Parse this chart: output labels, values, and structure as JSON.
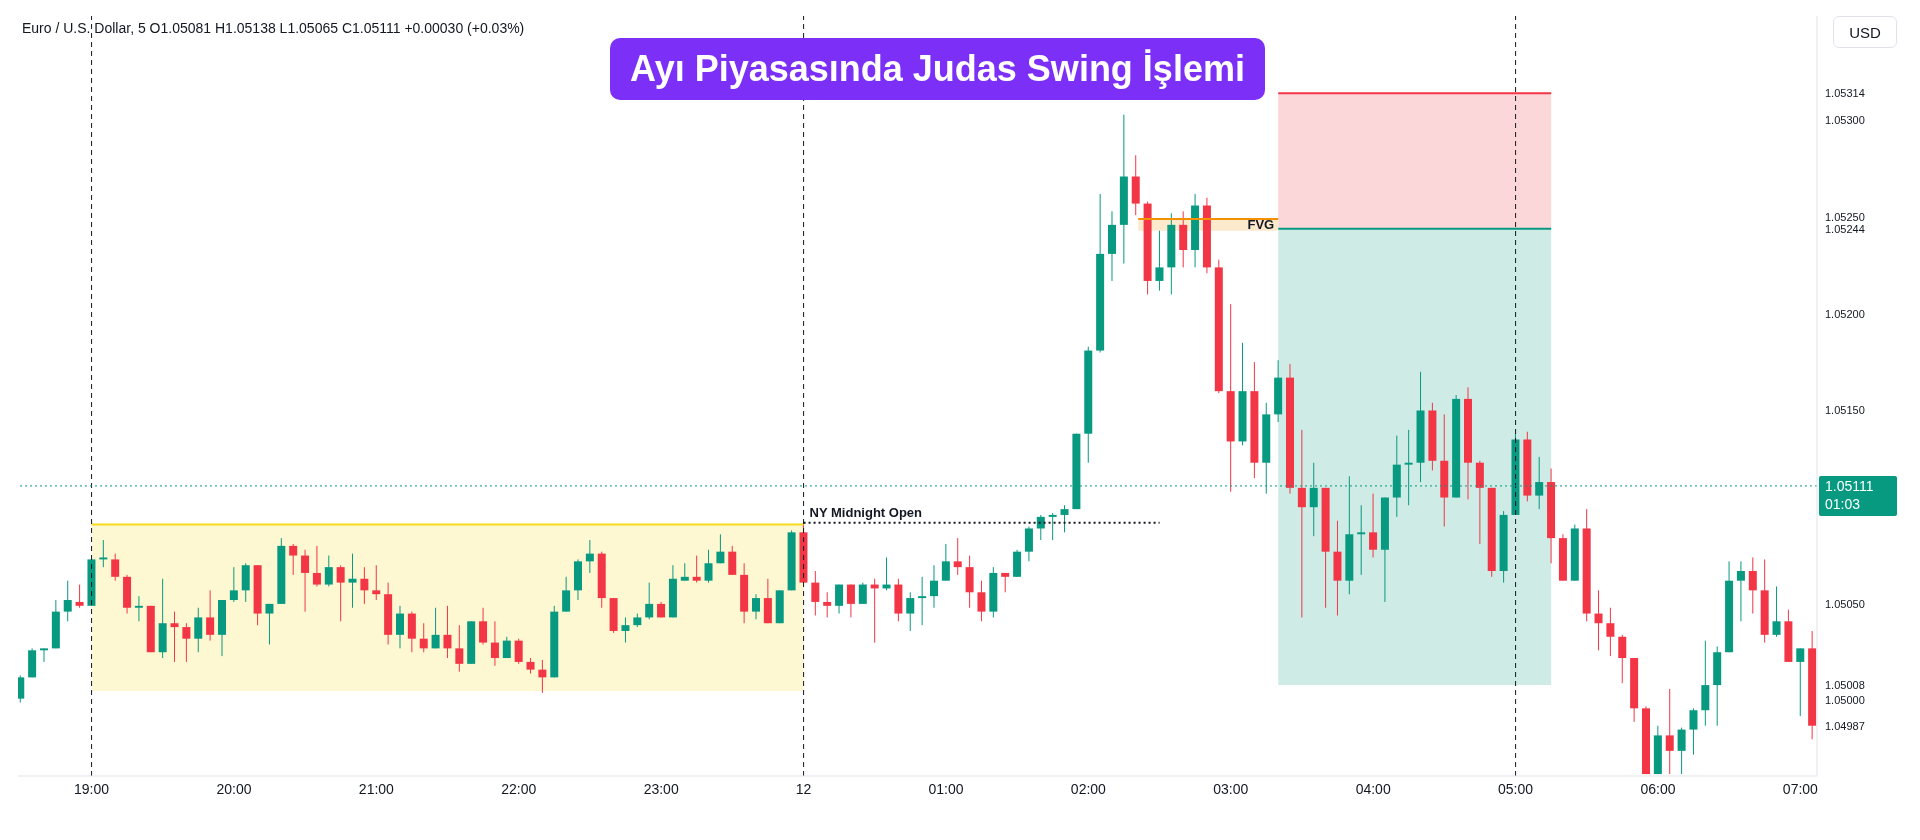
{
  "chart_data": {
    "type": "candlestick",
    "title": "Ayı Piyasasında Judas Swing İşlemi",
    "subtitle": "Euro / U.S. Dollar, 5 O1.05081 H1.05138 L1.05065 C1.05111 +0.00030 (+0.03%)",
    "ylabel": "USD",
    "x": [
      "--12-11T18:30",
      "--12-11T18:35",
      "--12-11T18:40",
      "--12-11T18:45",
      "--12-11T18:50",
      "--12-11T18:55",
      "--12-11T19:00",
      "--12-11T19:05",
      "--12-11T19:10",
      "--12-11T19:15",
      "--12-11T19:20",
      "--12-11T19:25",
      "--12-11T19:30",
      "--12-11T19:35",
      "--12-11T19:40",
      "--12-11T19:45",
      "--12-11T19:50",
      "--12-11T19:55",
      "--12-11T20:00",
      "--12-11T20:05",
      "--12-11T20:10",
      "--12-11T20:15",
      "--12-11T20:20",
      "--12-11T20:25",
      "--12-11T20:30",
      "--12-11T20:35",
      "--12-11T20:40",
      "--12-11T20:45",
      "--12-11T20:50",
      "--12-11T20:55",
      "--12-11T21:00",
      "--12-11T21:05",
      "--12-11T21:10",
      "--12-11T21:15",
      "--12-11T21:20",
      "--12-11T21:25",
      "--12-11T21:30",
      "--12-11T21:35",
      "--12-11T21:40",
      "--12-11T21:45",
      "--12-11T21:50",
      "--12-11T21:55",
      "--12-11T22:00",
      "--12-11T22:05",
      "--12-11T22:10",
      "--12-11T22:15",
      "--12-11T22:20",
      "--12-11T22:25",
      "--12-11T22:30",
      "--12-11T22:35",
      "--12-11T22:40",
      "--12-11T22:45",
      "--12-11T22:50",
      "--12-11T22:55",
      "--12-11T23:00",
      "--12-11T23:05",
      "--12-11T23:10",
      "--12-11T23:15",
      "--12-11T23:20",
      "--12-11T23:25",
      "--12-11T23:30",
      "--12-11T23:35",
      "--12-11T23:40",
      "--12-11T23:45",
      "--12-11T23:50",
      "--12-11T23:55",
      "--12-12T00:00",
      "--12-12T00:05",
      "--12-12T00:10",
      "--12-12T00:15",
      "--12-12T00:20",
      "--12-12T00:25",
      "--12-12T00:30",
      "--12-12T00:35",
      "--12-12T00:40",
      "--12-12T00:45",
      "--12-12T00:50",
      "--12-12T00:55",
      "--12-12T01:00",
      "--12-12T01:05",
      "--12-12T01:10",
      "--12-12T01:15",
      "--12-12T01:20",
      "--12-12T01:25",
      "--12-12T01:30",
      "--12-12T01:35",
      "--12-12T01:40",
      "--12-12T01:45",
      "--12-12T01:50",
      "--12-12T01:55",
      "--12-12T02:00",
      "--12-12T02:05",
      "--12-12T02:10",
      "--12-12T02:15",
      "--12-12T02:20",
      "--12-12T02:25",
      "--12-12T02:30",
      "--12-12T02:35",
      "--12-12T02:40",
      "--12-12T02:45",
      "--12-12T02:50",
      "--12-12T02:55",
      "--12-12T03:00",
      "--12-12T03:05",
      "--12-12T03:10",
      "--12-12T03:15",
      "--12-12T03:20",
      "--12-12T03:25",
      "--12-12T03:30",
      "--12-12T03:35",
      "--12-12T03:40",
      "--12-12T03:45",
      "--12-12T03:50",
      "--12-12T03:55",
      "--12-12T04:00",
      "--12-12T04:05",
      "--12-12T04:10",
      "--12-12T04:15",
      "--12-12T04:20",
      "--12-12T04:25",
      "--12-12T04:30",
      "--12-12T04:35",
      "--12-12T04:40",
      "--12-12T04:45",
      "--12-12T04:50",
      "--12-12T04:55",
      "--12-12T05:00",
      "--12-12T05:05",
      "--12-12T05:10",
      "--12-12T05:15",
      "--12-12T05:20",
      "--12-12T05:25",
      "--12-12T05:30",
      "--12-12T05:35",
      "--12-12T05:40",
      "--12-12T05:45",
      "--12-12T05:50",
      "--12-12T05:55",
      "--12-12T06:00",
      "--12-12T06:05",
      "--12-12T06:10",
      "--12-12T06:15",
      "--12-12T06:20",
      "--12-12T06:25",
      "--12-12T06:30",
      "--12-12T06:35",
      "--12-12T06:40",
      "--12-12T06:45",
      "--12-12T06:50",
      "--12-12T06:55",
      "--12-12T07:00",
      "--12-12T07:05"
    ],
    "ohlc": [
      [
        1.05001,
        1.05013,
        1.04999,
        1.05012
      ],
      [
        1.05012,
        1.05027,
        1.05012,
        1.05026
      ],
      [
        1.05026,
        1.05027,
        1.0502,
        1.05027
      ],
      [
        1.05027,
        1.05052,
        1.05027,
        1.05046
      ],
      [
        1.05046,
        1.05062,
        1.05041,
        1.05052
      ],
      [
        1.05051,
        1.0506,
        1.05048,
        1.05049
      ],
      [
        1.05049,
        1.05073,
        1.05049,
        1.05073
      ],
      [
        1.05073,
        1.05083,
        1.05069,
        1.05074
      ],
      [
        1.05073,
        1.05076,
        1.05062,
        1.05064
      ],
      [
        1.05064,
        1.05065,
        1.05045,
        1.05048
      ],
      [
        1.05048,
        1.05054,
        1.05041,
        1.05049
      ],
      [
        1.05049,
        1.05049,
        1.05025,
        1.05025
      ],
      [
        1.05025,
        1.05063,
        1.05022,
        1.0504
      ],
      [
        1.0504,
        1.05046,
        1.0502,
        1.05038
      ],
      [
        1.05038,
        1.0504,
        1.0502,
        1.05032
      ],
      [
        1.05032,
        1.05048,
        1.05025,
        1.05043
      ],
      [
        1.05043,
        1.05057,
        1.05031,
        1.05034
      ],
      [
        1.05034,
        1.05052,
        1.05023,
        1.05052
      ],
      [
        1.05052,
        1.05069,
        1.05051,
        1.05057
      ],
      [
        1.05057,
        1.05071,
        1.05051,
        1.0507
      ],
      [
        1.0507,
        1.0507,
        1.05039,
        1.05045
      ],
      [
        1.05045,
        1.0505,
        1.05029,
        1.0505
      ],
      [
        1.0505,
        1.05084,
        1.0505,
        1.0508
      ],
      [
        1.0508,
        1.05081,
        1.05065,
        1.05075
      ],
      [
        1.05075,
        1.05078,
        1.05046,
        1.05066
      ],
      [
        1.05066,
        1.0508,
        1.05059,
        1.0506
      ],
      [
        1.0506,
        1.05075,
        1.05059,
        1.05069
      ],
      [
        1.05069,
        1.0507,
        1.05041,
        1.05061
      ],
      [
        1.05061,
        1.05076,
        1.05048,
        1.05063
      ],
      [
        1.05063,
        1.05069,
        1.0505,
        1.05057
      ],
      [
        1.05057,
        1.0507,
        1.05052,
        1.05055
      ],
      [
        1.05055,
        1.05061,
        1.05029,
        1.05034
      ],
      [
        1.05034,
        1.05049,
        1.05027,
        1.05045
      ],
      [
        1.05045,
        1.05046,
        1.05025,
        1.05032
      ],
      [
        1.05032,
        1.0504,
        1.05025,
        1.05027
      ],
      [
        1.05027,
        1.05048,
        1.05027,
        1.05034
      ],
      [
        1.05034,
        1.05049,
        1.05022,
        1.05027
      ],
      [
        1.05027,
        1.05039,
        1.05015,
        1.05019
      ],
      [
        1.05019,
        1.05041,
        1.05019,
        1.05041
      ],
      [
        1.05041,
        1.05048,
        1.05029,
        1.0503
      ],
      [
        1.0503,
        1.05041,
        1.05018,
        1.05022
      ],
      [
        1.05022,
        1.05033,
        1.05022,
        1.05031
      ],
      [
        1.05031,
        1.05032,
        1.05019,
        1.0502
      ],
      [
        1.0502,
        1.05022,
        1.05014,
        1.05016
      ],
      [
        1.05016,
        1.05021,
        1.05004,
        1.05012
      ],
      [
        1.05012,
        1.05049,
        1.05012,
        1.05046
      ],
      [
        1.05046,
        1.05064,
        1.05046,
        1.05057
      ],
      [
        1.05057,
        1.05073,
        1.05052,
        1.05072
      ],
      [
        1.05072,
        1.05083,
        1.05066,
        1.05076
      ],
      [
        1.05076,
        1.05077,
        1.05048,
        1.05053
      ],
      [
        1.05053,
        1.05053,
        1.05035,
        1.05036
      ],
      [
        1.05036,
        1.05043,
        1.0503,
        1.05039
      ],
      [
        1.05039,
        1.05045,
        1.05038,
        1.05043
      ],
      [
        1.05043,
        1.05061,
        1.05042,
        1.0505
      ],
      [
        1.0505,
        1.05051,
        1.05043,
        1.05043
      ],
      [
        1.05043,
        1.0507,
        1.05043,
        1.05063
      ],
      [
        1.05062,
        1.05071,
        1.05062,
        1.05064
      ],
      [
        1.05064,
        1.05075,
        1.05061,
        1.05062
      ],
      [
        1.05062,
        1.05078,
        1.05061,
        1.05071
      ],
      [
        1.05071,
        1.05086,
        1.05071,
        1.05077
      ],
      [
        1.05077,
        1.0508,
        1.05065,
        1.05065
      ],
      [
        1.05065,
        1.05071,
        1.0504,
        1.05046
      ],
      [
        1.05046,
        1.05055,
        1.05042,
        1.05053
      ],
      [
        1.05053,
        1.05063,
        1.0504,
        1.0504
      ],
      [
        1.0504,
        1.05057,
        1.0504,
        1.05057
      ],
      [
        1.05057,
        1.05088,
        1.05057,
        1.05087
      ],
      [
        1.05087,
        1.05092,
        1.05061,
        1.05061
      ],
      [
        1.05061,
        1.05067,
        1.05044,
        1.05051
      ],
      [
        1.05051,
        1.05056,
        1.05043,
        1.05049
      ],
      [
        1.05049,
        1.0506,
        1.05045,
        1.0506
      ],
      [
        1.0506,
        1.0506,
        1.05043,
        1.0505
      ],
      [
        1.0505,
        1.05061,
        1.0505,
        1.0506
      ],
      [
        1.0506,
        1.05063,
        1.0503,
        1.05058
      ],
      [
        1.05058,
        1.05074,
        1.05057,
        1.0506
      ],
      [
        1.0506,
        1.05063,
        1.05041,
        1.05045
      ],
      [
        1.05045,
        1.05056,
        1.05036,
        1.05053
      ],
      [
        1.05053,
        1.05064,
        1.05039,
        1.05054
      ],
      [
        1.05054,
        1.0507,
        1.05048,
        1.05062
      ],
      [
        1.05062,
        1.05081,
        1.05062,
        1.05072
      ],
      [
        1.05072,
        1.05084,
        1.05065,
        1.05069
      ],
      [
        1.05069,
        1.05075,
        1.05048,
        1.05056
      ],
      [
        1.05056,
        1.05062,
        1.05041,
        1.05046
      ],
      [
        1.05046,
        1.05069,
        1.05043,
        1.05066
      ],
      [
        1.05066,
        1.05066,
        1.05056,
        1.05064
      ],
      [
        1.05064,
        1.05078,
        1.05064,
        1.05077
      ],
      [
        1.05077,
        1.0509,
        1.05072,
        1.05089
      ],
      [
        1.05089,
        1.05096,
        1.05083,
        1.05095
      ],
      [
        1.05095,
        1.05097,
        1.05083,
        1.05096
      ],
      [
        1.05096,
        1.05101,
        1.05087,
        1.05099
      ],
      [
        1.05099,
        1.05138,
        1.05099,
        1.05138
      ],
      [
        1.05138,
        1.05183,
        1.05123,
        1.05181
      ],
      [
        1.05181,
        1.05262,
        1.0518,
        1.05231
      ],
      [
        1.05231,
        1.05253,
        1.05217,
        1.05246
      ],
      [
        1.05246,
        1.05303,
        1.05226,
        1.05271
      ],
      [
        1.05271,
        1.05282,
        1.05251,
        1.05257
      ],
      [
        1.05257,
        1.05258,
        1.0521,
        1.05217
      ],
      [
        1.05217,
        1.05243,
        1.05212,
        1.05224
      ],
      [
        1.05224,
        1.05252,
        1.0521,
        1.05246
      ],
      [
        1.05246,
        1.05253,
        1.05224,
        1.05233
      ],
      [
        1.05233,
        1.05262,
        1.05224,
        1.05256
      ],
      [
        1.05256,
        1.0526,
        1.05221,
        1.05224
      ],
      [
        1.05224,
        1.05228,
        1.05159,
        1.0516
      ],
      [
        1.0516,
        1.05205,
        1.05108,
        1.05134
      ],
      [
        1.05134,
        1.05185,
        1.05132,
        1.0516
      ],
      [
        1.0516,
        1.05175,
        1.05115,
        1.05123
      ],
      [
        1.05123,
        1.05154,
        1.05107,
        1.05148
      ],
      [
        1.05148,
        1.05176,
        1.05144,
        1.05167
      ],
      [
        1.05167,
        1.05174,
        1.05107,
        1.0511
      ],
      [
        1.0511,
        1.0514,
        1.05043,
        1.051
      ],
      [
        1.051,
        1.05123,
        1.05085,
        1.0511
      ],
      [
        1.0511,
        1.0511,
        1.05048,
        1.05077
      ],
      [
        1.05077,
        1.05093,
        1.05044,
        1.05062
      ],
      [
        1.05062,
        1.05116,
        1.05055,
        1.05086
      ],
      [
        1.05086,
        1.05101,
        1.05065,
        1.05087
      ],
      [
        1.05087,
        1.05107,
        1.05074,
        1.05078
      ],
      [
        1.05078,
        1.05105,
        1.05051,
        1.05105
      ],
      [
        1.05105,
        1.05137,
        1.05095,
        1.05122
      ],
      [
        1.05122,
        1.0514,
        1.05101,
        1.05123
      ],
      [
        1.05123,
        1.0517,
        1.05113,
        1.0515
      ],
      [
        1.0515,
        1.05154,
        1.05119,
        1.05124
      ],
      [
        1.05124,
        1.05148,
        1.0509,
        1.05105
      ],
      [
        1.05105,
        1.05158,
        1.05105,
        1.05156
      ],
      [
        1.05156,
        1.05162,
        1.05104,
        1.05123
      ],
      [
        1.05123,
        1.05124,
        1.05081,
        1.0511
      ],
      [
        1.0511,
        1.0511,
        1.05064,
        1.05067
      ],
      [
        1.05067,
        1.05098,
        1.05061,
        1.05096
      ],
      [
        1.05096,
        1.05138,
        1.05096,
        1.05135
      ],
      [
        1.05135,
        1.05139,
        1.05103,
        1.05106
      ],
      [
        1.05106,
        1.05126,
        1.05099,
        1.05113
      ],
      [
        1.05113,
        1.0512,
        1.05071,
        1.05084
      ],
      [
        1.05084,
        1.05086,
        1.05062,
        1.05062
      ],
      [
        1.05062,
        1.05091,
        1.05062,
        1.05089
      ],
      [
        1.05089,
        1.05099,
        1.05041,
        1.05045
      ],
      [
        1.05045,
        1.05057,
        1.05026,
        1.0504
      ],
      [
        1.0504,
        1.05048,
        1.05023,
        1.05033
      ],
      [
        1.05033,
        1.05034,
        1.05009,
        1.05022
      ],
      [
        1.05022,
        1.05022,
        1.04989,
        1.04996
      ],
      [
        1.04996,
        1.04997,
        1.04962,
        1.04962
      ],
      [
        1.04962,
        1.04987,
        1.04962,
        1.04982
      ],
      [
        1.04982,
        1.05006,
        1.04962,
        1.04974
      ],
      [
        1.04974,
        1.04986,
        1.04962,
        1.04985
      ],
      [
        1.04985,
        1.04996,
        1.04972,
        1.04995
      ],
      [
        1.04995,
        1.05031,
        1.04987,
        1.05008
      ],
      [
        1.05008,
        1.05028,
        1.04987,
        1.05025
      ],
      [
        1.05025,
        1.05072,
        1.05025,
        1.05062
      ],
      [
        1.05062,
        1.05072,
        1.05041,
        1.05067
      ],
      [
        1.05067,
        1.05074,
        1.05045,
        1.05057
      ],
      [
        1.05057,
        1.05073,
        1.0503,
        1.05034
      ],
      [
        1.05034,
        1.05059,
        1.05033,
        1.05041
      ],
      [
        1.05041,
        1.05047,
        1.0502,
        1.0502
      ],
      [
        1.0502,
        1.05027,
        1.04992,
        1.05027
      ],
      [
        1.05027,
        1.05036,
        1.0498,
        1.04987
      ]
    ],
    "series": [
      {
        "type": "line",
        "color": "#f5dc1e",
        "x": [
          "--12-11T19:00",
          "--12-12T00:00"
        ],
        "values": [
          1.05091,
          1.05091
        ],
        "lower": [
          1.05005,
          1.05005
        ],
        "upper": [
          1.05091,
          1.05091
        ]
      },
      {
        "type": "line",
        "color": "#f23645",
        "x": [
          "--12-12T03:20",
          "--12-12T05:15"
        ],
        "values": [
          1.05314,
          1.05314
        ],
        "lower": [
          1.05244,
          1.05244
        ],
        "upper": [
          1.05314,
          1.05314
        ]
      },
      {
        "type": "line",
        "color": "#089981",
        "x": [
          "--12-12T03:20",
          "--12-12T05:15"
        ],
        "values": [
          1.05244,
          1.05244
        ],
        "lower": [
          1.05008,
          1.05008
        ],
        "upper": [
          1.05244,
          1.05244
        ]
      },
      {
        "type": "line",
        "name": "FVG",
        "color": "#f59100",
        "x": [
          "--12-12T02:21",
          "--12-12T03:20"
        ],
        "values": [
          1.05249,
          1.05249
        ],
        "lower": [
          1.05243,
          1.05243
        ],
        "upper": [
          1.05249,
          1.05249
        ]
      },
      {
        "type": "line",
        "color": "#131722",
        "line_style": "dotted",
        "x": [
          "--12-12T00:00",
          "--12-12T02:30"
        ],
        "values": [
          1.05092,
          1.05092
        ]
      }
    ],
    "ref_lines": [
      {
        "axis": "x",
        "value": "--12-11T19:00",
        "color": "#131722",
        "line_style": "dashed"
      },
      {
        "axis": "x",
        "value": "--12-12T00:00",
        "color": "#131722",
        "line_style": "dashed"
      },
      {
        "axis": "x",
        "value": "--12-12T05:00",
        "color": "#131722",
        "line_style": "dashed"
      },
      {
        "axis": "y",
        "value": 1.05111,
        "label": "1.05111\n01:03",
        "color": "#089981",
        "line_style": "dotted"
      }
    ],
    "annotations": [
      {
        "text": "NY Midnight Open",
        "x": "--12-12T00:00",
        "y": 1.05092
      }
    ],
    "xlim": [
      "--12-11T18:29",
      "--12-12T07:07"
    ],
    "xticks": [
      {
        "value": "--12-11T19:00",
        "label": "19:00"
      },
      {
        "value": "--12-11T20:00",
        "label": "20:00"
      },
      {
        "value": "--12-11T21:00",
        "label": "21:00"
      },
      {
        "value": "--12-11T22:00",
        "label": "22:00"
      },
      {
        "value": "--12-11T23:00",
        "label": "23:00"
      },
      {
        "value": "--12-12T00:00",
        "label": "12"
      },
      {
        "value": "--12-12T01:00",
        "label": "01:00"
      },
      {
        "value": "--12-12T02:00",
        "label": "02:00"
      },
      {
        "value": "--12-12T03:00",
        "label": "03:00"
      },
      {
        "value": "--12-12T04:00",
        "label": "04:00"
      },
      {
        "value": "--12-12T05:00",
        "label": "05:00"
      },
      {
        "value": "--12-12T06:00",
        "label": "06:00"
      },
      {
        "value": "--12-12T07:00",
        "label": "07:00"
      }
    ],
    "ylim": [
      1.04961,
      1.05354
    ],
    "yticks": [
      {
        "value": 1.04987,
        "label": "1.04987"
      },
      {
        "value": 1.05,
        "label": "1.05000"
      },
      {
        "value": 1.05008,
        "label": "1.05008"
      },
      {
        "value": 1.0505,
        "label": "1.05050"
      },
      {
        "value": 1.0515,
        "label": "1.05150"
      },
      {
        "value": 1.052,
        "label": "1.05200"
      },
      {
        "value": 1.05244,
        "label": "1.05244"
      },
      {
        "value": 1.0525,
        "label": "1.05250"
      },
      {
        "value": 1.053,
        "label": "1.05300"
      },
      {
        "value": 1.05314,
        "label": "1.05314"
      }
    ]
  }
}
